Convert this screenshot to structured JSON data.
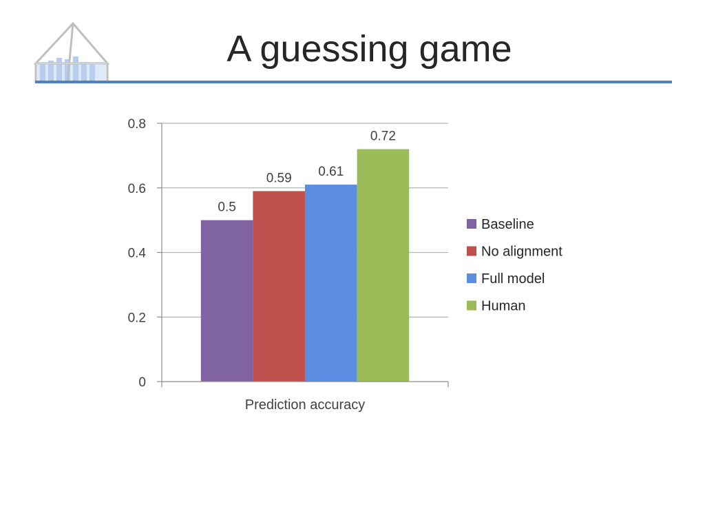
{
  "slide": {
    "title": "A guessing game"
  },
  "chart_data": {
    "type": "bar",
    "categories": [
      "Prediction accuracy"
    ],
    "series": [
      {
        "name": "Baseline",
        "values": [
          0.5
        ],
        "label": "0.5",
        "color": "#8064a2"
      },
      {
        "name": "No alignment",
        "values": [
          0.59
        ],
        "label": "0.59",
        "color": "#c0504d"
      },
      {
        "name": "Full model",
        "values": [
          0.61
        ],
        "label": "0.61",
        "color": "#5b8ee0"
      },
      {
        "name": "Human",
        "values": [
          0.72
        ],
        "label": "0.72",
        "color": "#9bbb59"
      }
    ],
    "ylim": [
      0,
      0.8
    ],
    "yticks": [
      0,
      0.2,
      0.4,
      0.6,
      0.8
    ],
    "ytick_labels": [
      "0",
      "0.2",
      "0.4",
      "0.6",
      "0.8"
    ],
    "grid": true,
    "legend_position": "right",
    "xlabel": "",
    "ylabel": ""
  }
}
